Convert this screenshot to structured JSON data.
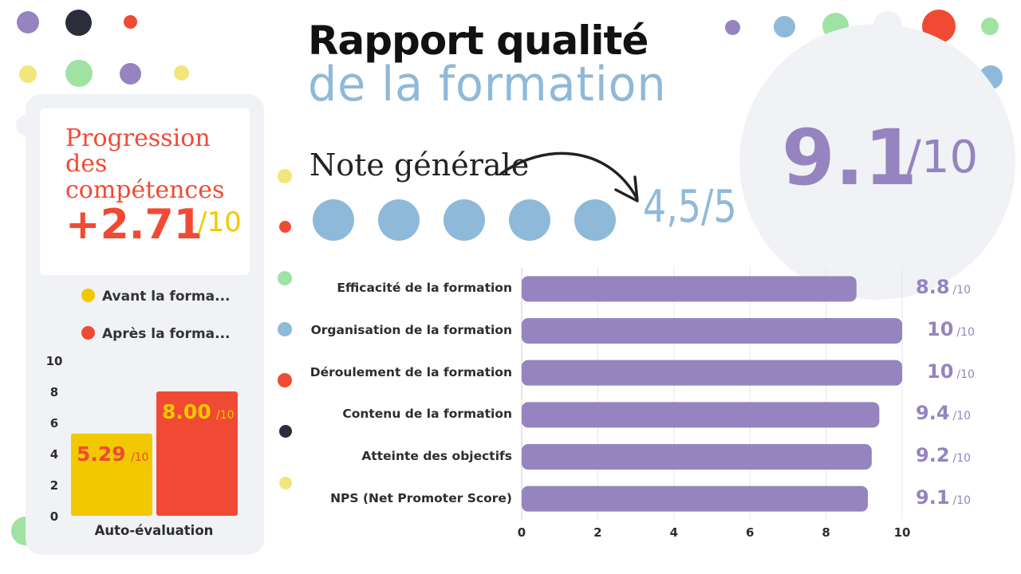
{
  "header": {
    "title_line1": "Rapport qualité",
    "title_line2": "de la formation"
  },
  "overall": {
    "score": "9.1",
    "denominator": "/10",
    "note_label": "Note générale",
    "note_value": "4,5/5",
    "rating_dots": 5
  },
  "progression": {
    "title": "Progression des compétences",
    "value": "+2.71",
    "denominator": "/10"
  },
  "colors": {
    "purple": "#9584bf",
    "blue": "#8fb9d9",
    "red": "#f14a34",
    "yellow": "#f2c800",
    "panel": "#f0f2f5"
  },
  "chart_data": [
    {
      "type": "bar",
      "orientation": "horizontal",
      "categories": [
        "Efficacité de la formation",
        "Organisation de la formation",
        "Déroulement de la formation",
        "Contenu de la formation",
        "Atteinte des objectifs",
        "NPS (Net Promoter Score)"
      ],
      "values": [
        8.8,
        10,
        10,
        9.4,
        9.2,
        9.1
      ],
      "value_labels": [
        "8.8",
        "10",
        "10",
        "9.4",
        "9.2",
        "9.1"
      ],
      "value_suffix": "/10",
      "xlim": [
        0,
        10
      ],
      "xticks": [
        0,
        2,
        4,
        6,
        8,
        10
      ],
      "grid": true,
      "color": "#9584bf"
    },
    {
      "type": "bar",
      "categories": [
        "Auto-évaluation"
      ],
      "xlabel": "Auto-évaluation",
      "series": [
        {
          "name": "Avant la forma...",
          "values": [
            5.29
          ],
          "label": "5.29",
          "color": "#f2c800",
          "label_color": "#f14a34"
        },
        {
          "name": "Après la forma...",
          "values": [
            8.0
          ],
          "label": "8.00",
          "color": "#f14a34",
          "label_color": "#f2c800"
        }
      ],
      "value_suffix": "/10",
      "ylim": [
        0,
        10
      ],
      "yticks": [
        0,
        2,
        4,
        6,
        8,
        10
      ],
      "legend": "top"
    }
  ]
}
